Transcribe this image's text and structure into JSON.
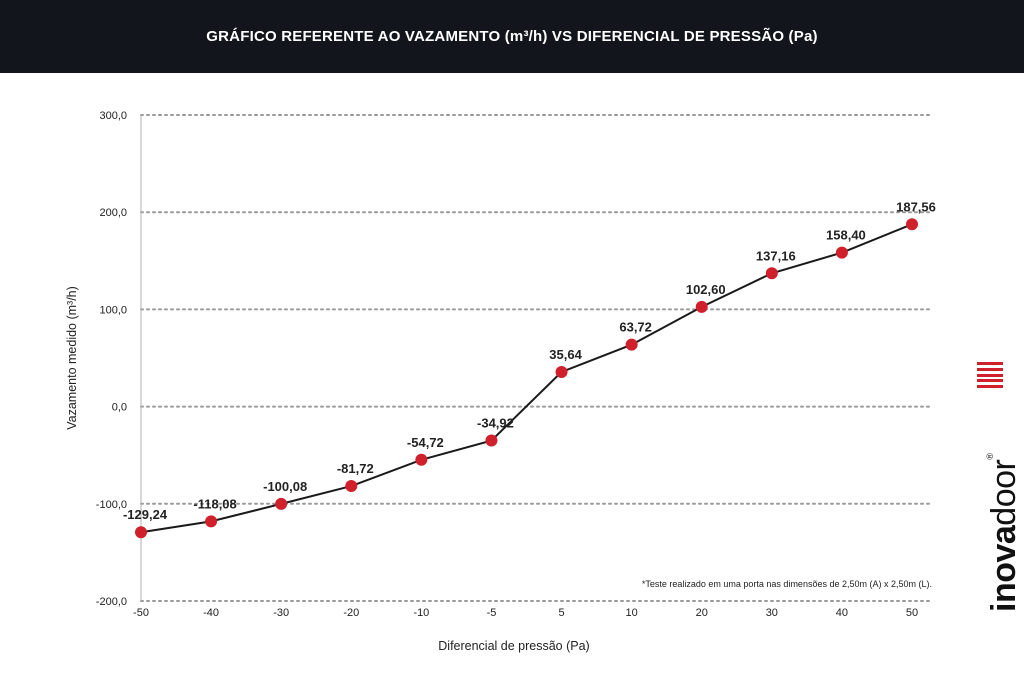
{
  "header": {
    "title": "GRÁFICO REFERENTE AO VAZAMENTO (m³/h) VS DIFERENCIAL DE PRESSÃO (Pa)"
  },
  "chart_data": {
    "type": "line",
    "title": "GRÁFICO REFERENTE AO VAZAMENTO (m³/h) VS DIFERENCIAL DE PRESSÃO (Pa)",
    "xlabel": "Diferencial de pressão (Pa)",
    "ylabel": "Vazamento medido (m³/h)",
    "categories": [
      "-50",
      "-40",
      "-30",
      "-20",
      "-10",
      "-5",
      "5",
      "10",
      "20",
      "30",
      "40",
      "50"
    ],
    "series": [
      {
        "values": [
          -129.24,
          -118.08,
          -100.08,
          -81.72,
          -54.72,
          -34.92,
          35.64,
          63.72,
          102.6,
          137.16,
          158.4,
          187.56
        ],
        "labels": [
          "-129,24",
          "-118,08",
          "-100,08",
          "-81,72",
          "-54,72",
          "-34,92",
          "35,64",
          "63,72",
          "102,60",
          "137,16",
          "158,40",
          "187,56"
        ],
        "color": "#d0202b",
        "line_color": "#1a1a1a"
      }
    ],
    "ylim": [
      -200,
      300
    ],
    "y_ticks": [
      300,
      200,
      100,
      0,
      -100,
      -200
    ],
    "y_tick_labels": [
      "300,0",
      "200,0",
      "100,0",
      "0,0",
      "-100,0",
      "-200,0"
    ],
    "grid": "horizontal dotted",
    "note": "*Teste realizado em uma porta nas dimensões de 2,50m (A) x 2,50m (L)."
  },
  "logo": {
    "bold_part": "inova",
    "regular_part": "door",
    "registered": "®",
    "accent_color": "#d0202b"
  }
}
